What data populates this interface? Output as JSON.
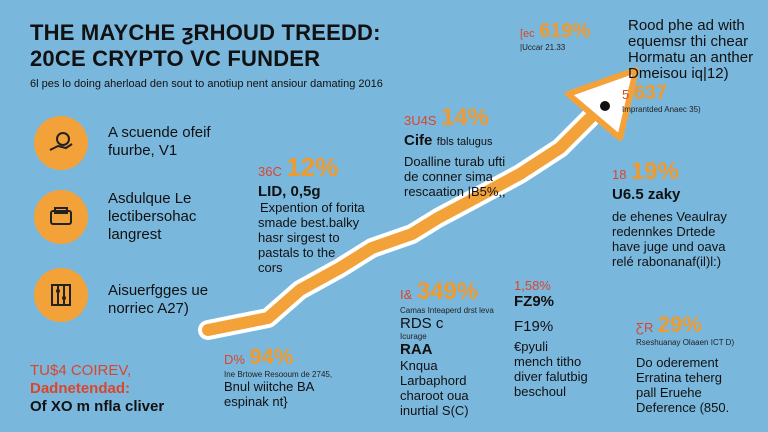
{
  "header": {
    "title_line1": "THE MAYCHE ƺRHOUD TREEDD:",
    "title_line2": "20CE CRYPTO VC FUNDER",
    "subtitle": "6l pes lo doing aherload den sout to anotiup nent ansiour damating 2016"
  },
  "left_items": [
    {
      "icon": "hand-coin-icon",
      "label_line1": "A scuende ofeif",
      "label_line2": "fuurbe, V1"
    },
    {
      "icon": "wallet-icon",
      "label_line1": "Asdulque Le",
      "label_line2": "lectibersohac",
      "label_line3": "langrest"
    },
    {
      "icon": "abacus-icon",
      "label_line1": "Aisuerfgges ue",
      "label_line2": "norriec A27)"
    }
  ],
  "footer_left": {
    "line1": "TU$4 COIREV,",
    "line2": "Dadnetendad:",
    "line3": "Of XO m nfla cliver"
  },
  "callouts": {
    "c94": {
      "small": "D%",
      "pct": "94%",
      "tiny": "Ine Brtowe Resooum de 2745,",
      "line1": "Bnul wiitche BA",
      "line2": "espinak nt}"
    },
    "c12": {
      "small": "36C",
      "pct": "12%",
      "head": "LID, 0,5g",
      "line1": "Expention of forita",
      "line2": "smade best.balky",
      "line3": "hasr sirgest to",
      "line4": "pastals to the",
      "line5": "cors"
    },
    "c14": {
      "small": "3U4S",
      "pct": "14%",
      "head": "Cife",
      "head_rest": "fbls talugus",
      "line1": "Doalline turab ufti",
      "line2": "de conner sima",
      "line3": "rescaation |B5%,,"
    },
    "c619": {
      "small": "[ec",
      "pct": "619%",
      "tiny": "|Uccar 21.33"
    },
    "c_right_top": {
      "line1": "Rood phe ad with",
      "line2": "equemsr thi chear",
      "line3": "Hormatu an anther",
      "line4": "Dmeisou iq|12)"
    },
    "c637": {
      "small": "5",
      "pct": "637",
      "tiny": "Imprantded Anaec 35)"
    },
    "c19": {
      "small": "18",
      "pct": "19%",
      "head": "U6.5 zaky",
      "line1": "de ehenes Veaulray",
      "line2": "redennkes Drtede",
      "line3": "have juge und oava",
      "line4": "relé rabonanaf(il)l:)"
    },
    "c349": {
      "small": "I&",
      "pct": "349%",
      "tiny": "Camas Inteaperd drst leva",
      "head": "RDS  c",
      "tiny2": "Icurage",
      "head2": "RAA",
      "line1": "Knqua",
      "line2": "Larbaphord",
      "line3": "charoot oua",
      "line4": "inurtial S(C)"
    },
    "c79": {
      "small": "1,58%",
      "head": "FZ9%",
      "head2": "F19%",
      "line1": "€pyuli",
      "line2": "mench titho",
      "line3": "diver falutbig",
      "line4": "beschoul"
    },
    "c29": {
      "small": "ƸR",
      "pct": "29%",
      "tiny": "Rseshuanay Olaaen ICT D)",
      "line1": "Do oderement",
      "line2": "Erratina teherg",
      "line3": "pall Eruehe",
      "line4": "Deference (850."
    }
  }
}
